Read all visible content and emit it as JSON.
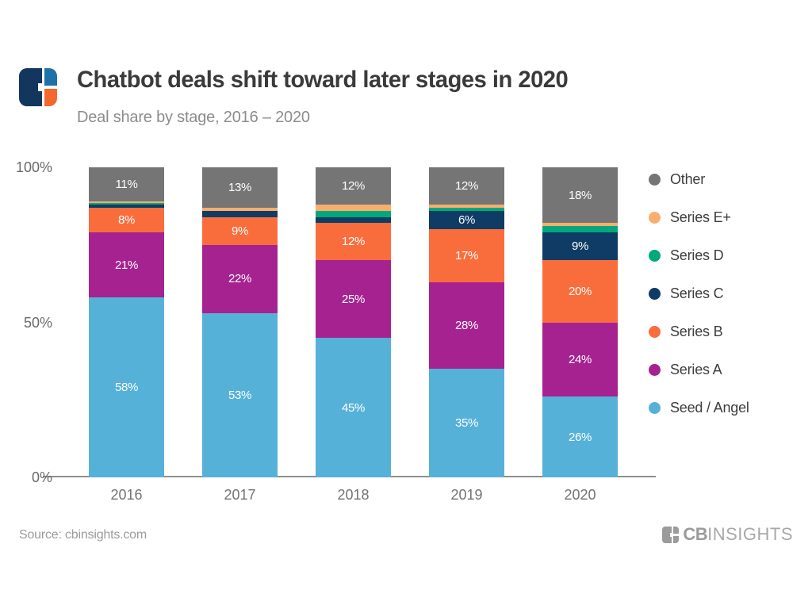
{
  "header": {
    "title": "Chatbot deals shift toward later stages in 2020",
    "subtitle": "Deal share by stage, 2016 – 2020"
  },
  "footer": {
    "source": "Source: cbinsights.com",
    "brand_cb": "CB",
    "brand_insights": "INSIGHTS"
  },
  "brand_colors": {
    "logo_navy": "#12365E",
    "logo_blue": "#1F72A9",
    "logo_orange": "#F4682F",
    "footer_gray": "#9b9b9b"
  },
  "chart_data": {
    "type": "bar",
    "stacked": true,
    "title": "Chatbot deals shift toward later stages in 2020",
    "subtitle": "Deal share by stage, 2016 – 2020",
    "xlabel": "",
    "ylabel": "",
    "ylim": [
      0,
      100
    ],
    "grid": false,
    "legend_position": "right",
    "label_min_value": 6,
    "label_suffix": "%",
    "categories": [
      "2016",
      "2017",
      "2018",
      "2019",
      "2020"
    ],
    "yticks": [
      {
        "value": 0,
        "label": "0%"
      },
      {
        "value": 50,
        "label": "50%"
      },
      {
        "value": 100,
        "label": "100%"
      }
    ],
    "series": [
      {
        "name": "Seed / Angel",
        "color": "#56B1D8",
        "values": [
          58,
          53,
          45,
          35,
          26
        ]
      },
      {
        "name": "Series A",
        "color": "#A52290",
        "values": [
          21,
          22,
          25,
          28,
          24
        ]
      },
      {
        "name": "Series B",
        "color": "#F96D3D",
        "values": [
          8,
          9,
          12,
          17,
          20
        ]
      },
      {
        "name": "Series C",
        "color": "#0E3C64",
        "values": [
          1,
          2,
          2,
          6,
          9
        ]
      },
      {
        "name": "Series D",
        "color": "#00A87B",
        "values": [
          0.5,
          0,
          2,
          1,
          2
        ]
      },
      {
        "name": "Series E+",
        "color": "#F8AE6E",
        "values": [
          0.5,
          1,
          2,
          1,
          1
        ]
      },
      {
        "name": "Other",
        "color": "#757575",
        "values": [
          11,
          13,
          12,
          12,
          18
        ]
      }
    ]
  }
}
